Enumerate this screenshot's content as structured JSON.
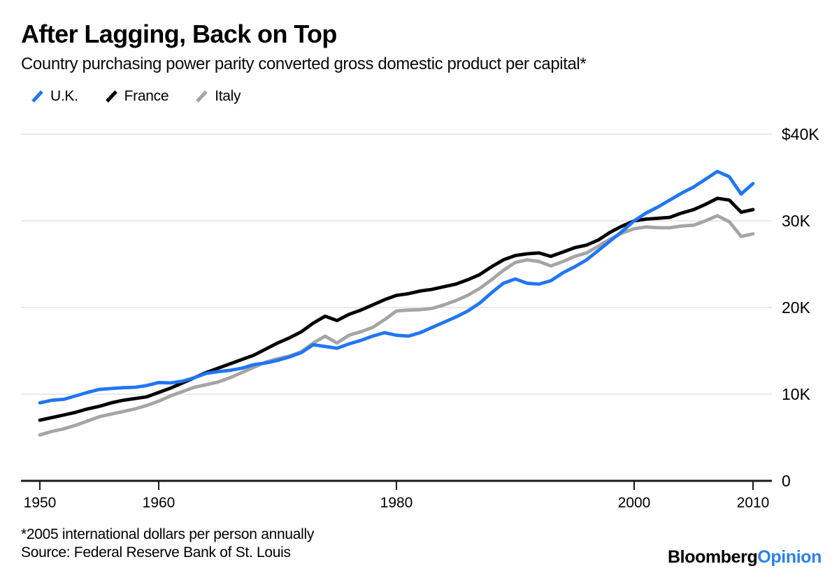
{
  "header": {
    "title": "After Lagging, Back on Top",
    "subtitle": "Country purchasing power parity converted gross domestic product per capital*"
  },
  "legend": [
    {
      "label": "U.K.",
      "color": "#2176f3"
    },
    {
      "label": "France",
      "color": "#000000"
    },
    {
      "label": "Italy",
      "color": "#a5a5a5"
    }
  ],
  "footer": {
    "note": "*2005 international dollars per person annually",
    "source": "Source: Federal Reserve Bank of St. Louis",
    "brand_black": "Bloomberg",
    "brand_blue": "Opinion"
  },
  "chart_data": {
    "type": "line",
    "title": "After Lagging, Back on Top",
    "subtitle": "Country purchasing power parity converted gross domestic product per capital*",
    "xlabel": "",
    "ylabel": "2005 international dollars per person annually (thousands)",
    "xlim": [
      1950,
      2010
    ],
    "ylim": [
      0,
      40
    ],
    "grid": "horizontal",
    "legend_position": "top-left",
    "x_ticks": [
      1950,
      1960,
      1980,
      2000,
      2010
    ],
    "y_ticks": [
      {
        "value": 40,
        "label": "$40K"
      },
      {
        "value": 30,
        "label": "30K"
      },
      {
        "value": 20,
        "label": "20K"
      },
      {
        "value": 10,
        "label": "10K"
      },
      {
        "value": 0,
        "label": "0"
      }
    ],
    "x": [
      1950,
      1951,
      1952,
      1953,
      1954,
      1955,
      1956,
      1957,
      1958,
      1959,
      1960,
      1961,
      1962,
      1963,
      1964,
      1965,
      1966,
      1967,
      1968,
      1969,
      1970,
      1971,
      1972,
      1973,
      1974,
      1975,
      1976,
      1977,
      1978,
      1979,
      1980,
      1981,
      1982,
      1983,
      1984,
      1985,
      1986,
      1987,
      1988,
      1989,
      1990,
      1991,
      1992,
      1993,
      1994,
      1995,
      1996,
      1997,
      1998,
      1999,
      2000,
      2001,
      2002,
      2003,
      2004,
      2005,
      2006,
      2007,
      2008,
      2009,
      2010
    ],
    "series": [
      {
        "name": "U.K.",
        "color": "#2176f3",
        "values": [
          9.0,
          9.3,
          9.4,
          9.8,
          10.2,
          10.55,
          10.65,
          10.75,
          10.8,
          11.0,
          11.35,
          11.3,
          11.5,
          11.9,
          12.4,
          12.6,
          12.75,
          13.0,
          13.4,
          13.6,
          13.9,
          14.3,
          14.8,
          15.7,
          15.5,
          15.3,
          15.8,
          16.2,
          16.7,
          17.1,
          16.8,
          16.7,
          17.1,
          17.7,
          18.3,
          18.9,
          19.6,
          20.5,
          21.7,
          22.8,
          23.3,
          22.8,
          22.7,
          23.1,
          24.0,
          24.7,
          25.5,
          26.6,
          27.7,
          28.8,
          30.0,
          30.9,
          31.6,
          32.4,
          33.2,
          33.9,
          34.8,
          35.7,
          35.1,
          33.1,
          34.3
        ]
      },
      {
        "name": "France",
        "color": "#000000",
        "values": [
          7.0,
          7.3,
          7.6,
          7.9,
          8.3,
          8.6,
          9.0,
          9.3,
          9.5,
          9.7,
          10.2,
          10.7,
          11.3,
          11.9,
          12.5,
          13.0,
          13.5,
          14.0,
          14.5,
          15.2,
          15.9,
          16.5,
          17.2,
          18.2,
          19.0,
          18.5,
          19.2,
          19.7,
          20.3,
          20.9,
          21.4,
          21.6,
          21.9,
          22.1,
          22.4,
          22.7,
          23.2,
          23.8,
          24.7,
          25.5,
          26.0,
          26.2,
          26.3,
          25.9,
          26.4,
          26.9,
          27.2,
          27.8,
          28.7,
          29.4,
          30.0,
          30.2,
          30.3,
          30.4,
          30.9,
          31.3,
          31.9,
          32.6,
          32.4,
          31.0,
          31.3
        ]
      },
      {
        "name": "Italy",
        "color": "#a5a5a5",
        "values": [
          5.3,
          5.7,
          6.0,
          6.4,
          6.9,
          7.4,
          7.7,
          8.0,
          8.3,
          8.7,
          9.2,
          9.8,
          10.3,
          10.8,
          11.1,
          11.4,
          11.9,
          12.5,
          13.1,
          13.7,
          14.1,
          14.4,
          14.9,
          15.9,
          16.7,
          15.9,
          16.8,
          17.2,
          17.7,
          18.6,
          19.6,
          19.7,
          19.75,
          19.9,
          20.3,
          20.8,
          21.4,
          22.2,
          23.2,
          24.3,
          25.2,
          25.5,
          25.3,
          24.8,
          25.3,
          25.9,
          26.3,
          27.1,
          27.9,
          28.6,
          29.1,
          29.3,
          29.2,
          29.2,
          29.4,
          29.5,
          30.0,
          30.6,
          29.9,
          28.2,
          28.5
        ]
      }
    ]
  }
}
